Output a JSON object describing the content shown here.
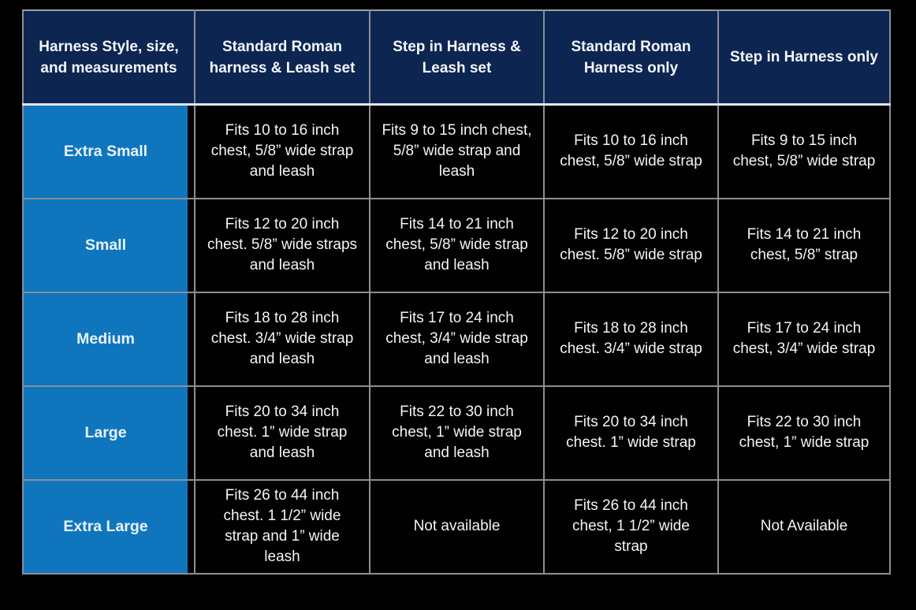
{
  "colors": {
    "page_bg": "#000000",
    "header_bg": "#0d2551",
    "row_label_bg": "#0f76be",
    "cell_bg": "#010101",
    "grid_line": "#8a8e95",
    "header_divider": "#e3e7ec",
    "text": "#f3f4f6"
  },
  "chart_data": {
    "type": "table",
    "title": "Harness Style, size, and measurements",
    "columns": [
      "Harness Style, size, and measurements",
      "Standard Roman harness & Leash set",
      "Step in Harness & Leash set",
      "Standard Roman Harness only",
      "Step in Harness only"
    ],
    "rows": [
      {
        "label": "Extra Small",
        "cells": [
          "Fits 10 to 16 inch chest, 5/8” wide strap and leash",
          "Fits 9 to 15 inch chest, 5/8” wide strap and leash",
          "Fits 10 to 16 inch chest, 5/8” wide strap",
          "Fits 9 to 15 inch chest, 5/8” wide strap"
        ]
      },
      {
        "label": "Small",
        "cells": [
          "Fits 12 to 20 inch chest. 5/8” wide straps and leash",
          "Fits 14 to 21 inch chest, 5/8” wide strap and leash",
          "Fits 12 to 20 inch chest. 5/8” wide strap",
          "Fits 14 to 21 inch chest, 5/8” strap"
        ]
      },
      {
        "label": "Medium",
        "cells": [
          "Fits 18 to 28 inch chest. 3/4” wide strap and leash",
          "Fits 17 to 24 inch chest, 3/4” wide strap and leash",
          "Fits 18 to 28 inch chest. 3/4” wide strap",
          "Fits 17 to 24 inch chest, 3/4” wide strap"
        ]
      },
      {
        "label": "Large",
        "cells": [
          "Fits 20 to 34 inch chest. 1” wide strap and leash",
          "Fits 22 to 30 inch chest, 1” wide strap and leash",
          "Fits 20 to 34 inch chest. 1” wide strap",
          "Fits 22 to 30 inch chest, 1” wide strap"
        ]
      },
      {
        "label": "Extra Large",
        "cells": [
          "Fits 26 to 44 inch chest. 1 1/2” wide strap and 1” wide leash",
          "Not available",
          "Fits 26 to 44 inch chest, 1 1/2” wide strap",
          "Not Available"
        ]
      }
    ]
  }
}
